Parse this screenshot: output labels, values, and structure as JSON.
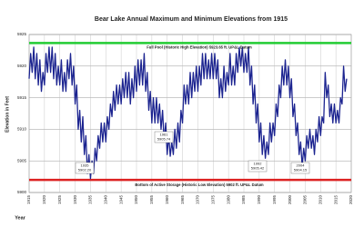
{
  "chart_data": {
    "type": "line",
    "title": "Bear Lake Annual Maximum and Minimum Elevations  from 1915",
    "y_label": "Elevation in Feet",
    "x_label": "Year",
    "color": "#1c2490",
    "grid": true,
    "xlim": [
      1915,
      2020
    ],
    "xticks": [
      1915,
      1920,
      1925,
      1930,
      1935,
      1940,
      1945,
      1950,
      1955,
      1960,
      1965,
      1970,
      1975,
      1980,
      1985,
      1990,
      1995,
      2000,
      2005,
      2010,
      2015,
      2020
    ],
    "ylim": [
      5900,
      5925
    ],
    "yticks": [
      5900,
      5905,
      5910,
      5915,
      5920,
      5925
    ],
    "reference_lines": [
      {
        "value": 5923.65,
        "label": "Full Pool (Historic High Elevation) 5923.65  ft. UP&L Datum",
        "color": "#22cc33"
      },
      {
        "value": 5902,
        "label": "Bottom of Active Storage (Historic Low Elevation) 5902  ft. UP&L Datum",
        "color": "#dd2222"
      }
    ],
    "annotations": [
      {
        "year": "1935",
        "elevation": "5902.20"
      },
      {
        "year": "1961",
        "elevation": "5905.74"
      },
      {
        "year": "1992",
        "elevation": "5905.42"
      },
      {
        "year": "2004",
        "elevation": "5904.15"
      }
    ],
    "x": [
      1915,
      1915.5,
      1916,
      1916.5,
      1917,
      1917.5,
      1918,
      1918.5,
      1919,
      1919.5,
      1920,
      1920.5,
      1921,
      1921.5,
      1922,
      1922.5,
      1923,
      1923.5,
      1924,
      1924.5,
      1925,
      1925.5,
      1926,
      1926.5,
      1927,
      1927.5,
      1928,
      1928.5,
      1929,
      1929.5,
      1930,
      1930.5,
      1931,
      1931.5,
      1932,
      1932.5,
      1933,
      1933.5,
      1934,
      1934.5,
      1935,
      1935.5,
      1936,
      1936.5,
      1937,
      1937.5,
      1938,
      1938.5,
      1939,
      1939.5,
      1940,
      1940.5,
      1941,
      1941.5,
      1942,
      1942.5,
      1943,
      1943.5,
      1944,
      1944.5,
      1945,
      1945.5,
      1946,
      1946.5,
      1947,
      1947.5,
      1948,
      1948.5,
      1949,
      1949.5,
      1950,
      1950.5,
      1951,
      1951.5,
      1952,
      1952.5,
      1953,
      1953.5,
      1954,
      1954.5,
      1955,
      1955.5,
      1956,
      1956.5,
      1957,
      1957.5,
      1958,
      1958.5,
      1959,
      1959.5,
      1960,
      1960.5,
      1961,
      1961.5,
      1962,
      1962.5,
      1963,
      1963.5,
      1964,
      1964.5,
      1965,
      1965.5,
      1966,
      1966.5,
      1967,
      1967.5,
      1968,
      1968.5,
      1969,
      1969.5,
      1970,
      1970.5,
      1971,
      1971.5,
      1972,
      1972.5,
      1973,
      1973.5,
      1974,
      1974.5,
      1975,
      1975.5,
      1976,
      1976.5,
      1977,
      1977.5,
      1978,
      1978.5,
      1979,
      1979.5,
      1980,
      1980.5,
      1981,
      1981.5,
      1982,
      1982.5,
      1983,
      1983.5,
      1984,
      1984.5,
      1985,
      1985.5,
      1986,
      1986.5,
      1987,
      1987.5,
      1988,
      1988.5,
      1989,
      1989.5,
      1990,
      1990.5,
      1991,
      1991.5,
      1992,
      1992.5,
      1993,
      1993.5,
      1994,
      1994.5,
      1995,
      1995.5,
      1996,
      1996.5,
      1997,
      1997.5,
      1998,
      1998.5,
      1999,
      1999.5,
      2000,
      2000.5,
      2001,
      2001.5,
      2002,
      2002.5,
      2003,
      2003.5,
      2004,
      2004.5,
      2005,
      2005.5,
      2006,
      2006.5,
      2007,
      2007.5,
      2008,
      2008.5,
      2009,
      2009.5,
      2010,
      2010.5,
      2011,
      2011.5,
      2012,
      2012.5,
      2013,
      2013.5,
      2014,
      2014.5,
      2015,
      2015.5,
      2016,
      2016.5,
      2017,
      2017.5,
      2018,
      2018.5
    ],
    "values": [
      5918,
      5922,
      5919,
      5923,
      5918,
      5922,
      5917,
      5921,
      5916,
      5919,
      5917,
      5922,
      5919,
      5923,
      5919,
      5923,
      5918,
      5922,
      5917,
      5920,
      5917,
      5921,
      5916,
      5919,
      5916,
      5921,
      5918,
      5922,
      5917,
      5920,
      5914,
      5917,
      5910,
      5913,
      5908,
      5912,
      5906,
      5909,
      5903,
      5906,
      5902.2,
      5905,
      5903,
      5907,
      5905,
      5909,
      5907,
      5911,
      5908,
      5911,
      5908,
      5912,
      5910,
      5914,
      5912,
      5916,
      5913,
      5917,
      5914,
      5917,
      5914,
      5918,
      5915,
      5919,
      5915,
      5919,
      5914,
      5918,
      5915,
      5920,
      5916,
      5921,
      5917,
      5921,
      5917,
      5922,
      5916,
      5919,
      5913,
      5916,
      5911,
      5915,
      5911,
      5915,
      5911,
      5914,
      5910,
      5913,
      5908,
      5911,
      5906,
      5909,
      5905.74,
      5908,
      5906,
      5910,
      5907,
      5911,
      5908,
      5913,
      5911,
      5917,
      5914,
      5917,
      5914,
      5919,
      5915,
      5919,
      5916,
      5920,
      5916,
      5920,
      5917,
      5922,
      5918,
      5922,
      5918,
      5921,
      5918,
      5922,
      5918,
      5922,
      5918,
      5921,
      5915,
      5918,
      5915,
      5920,
      5916,
      5919,
      5917,
      5922,
      5917,
      5920,
      5917,
      5922,
      5919,
      5923,
      5920,
      5923,
      5919,
      5922,
      5919,
      5923,
      5917,
      5920,
      5914,
      5917,
      5911,
      5914,
      5908,
      5911,
      5906,
      5909,
      5905.42,
      5908,
      5906,
      5911,
      5908,
      5911,
      5909,
      5914,
      5912,
      5917,
      5915,
      5920,
      5917,
      5921,
      5917,
      5920,
      5915,
      5918,
      5912,
      5914,
      5909,
      5911,
      5906,
      5908,
      5904.15,
      5907,
      5905,
      5909,
      5907,
      5910,
      5907,
      5909,
      5906,
      5910,
      5908,
      5912,
      5909,
      5912,
      5911,
      5919,
      5915,
      5917,
      5912,
      5914,
      5911,
      5914,
      5911,
      5913,
      5911,
      5915,
      5914,
      5920,
      5916,
      5918
    ]
  }
}
